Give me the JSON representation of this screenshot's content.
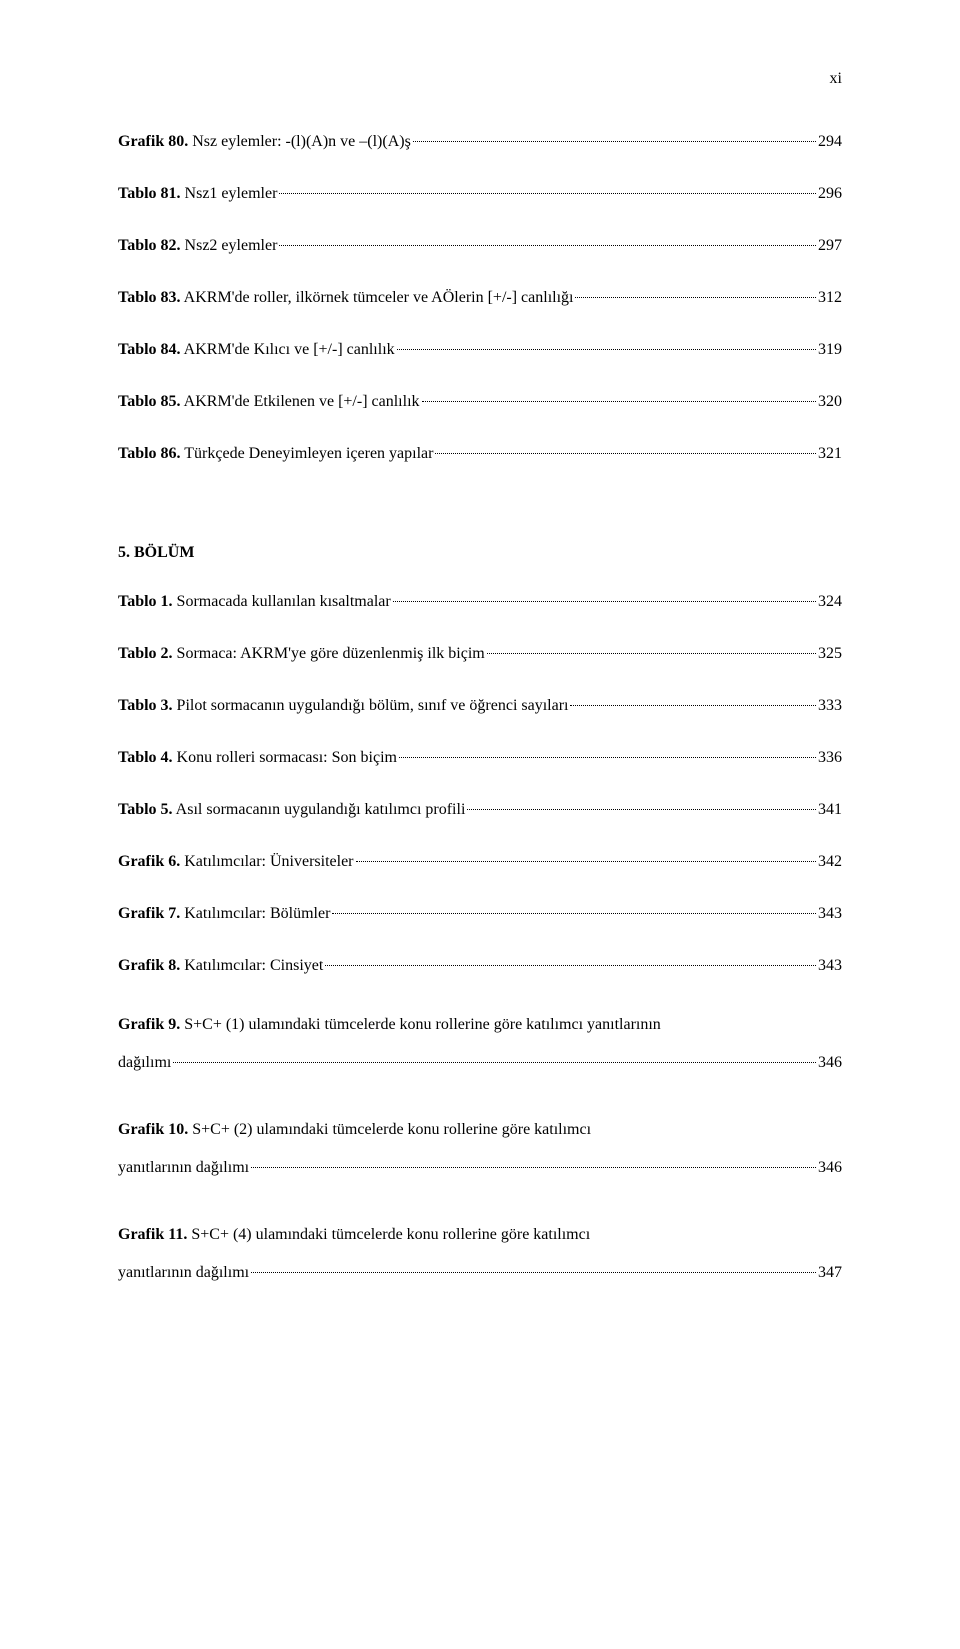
{
  "page_number": "xi",
  "entries_top": [
    {
      "label_bold": "Grafik 80.",
      "label_rest": " Nsz eylemler: -(l)(A)n ve –(l)(A)ş",
      "page": "294"
    },
    {
      "label_bold": "Tablo 81.",
      "label_rest": " Nsz1 eylemler",
      "page": "296"
    },
    {
      "label_bold": "Tablo 82.",
      "label_rest": " Nsz2 eylemler",
      "page": "297"
    },
    {
      "label_bold": "Tablo 83.",
      "label_rest": " AKRM'de roller, ilkörnek tümceler ve AÖlerin [+/-] canlılığı",
      "page": "312"
    },
    {
      "label_bold": "Tablo 84.",
      "label_rest": " AKRM'de Kılıcı ve [+/-] canlılık",
      "page": "319"
    },
    {
      "label_bold": "Tablo 85.",
      "label_rest": " AKRM'de Etkilenen ve [+/-] canlılık",
      "page": "320"
    },
    {
      "label_bold": "Tablo 86.",
      "label_rest": " Türkçede Deneyimleyen içeren yapılar",
      "page": "321"
    }
  ],
  "section_title": "5. BÖLÜM",
  "entries_bottom": [
    {
      "label_bold": "Tablo 1.",
      "label_rest": " Sormacada kullanılan kısaltmalar",
      "page": "324"
    },
    {
      "label_bold": "Tablo 2.",
      "label_rest": " Sormaca: AKRM'ye göre düzenlenmiş ilk biçim",
      "page": "325"
    },
    {
      "label_bold": "Tablo 3.",
      "label_rest": " Pilot sormacanın uygulandığı bölüm, sınıf ve öğrenci sayıları",
      "page": "333"
    },
    {
      "label_bold": "Tablo 4.",
      "label_rest": " Konu rolleri sormacası: Son biçim",
      "page": "336"
    },
    {
      "label_bold": "Tablo 5.",
      "label_rest": " Asıl sormacanın uygulandığı katılımcı profili",
      "page": "341"
    },
    {
      "label_bold": "Grafik 6.",
      "label_rest": " Katılımcılar: Üniversiteler",
      "page": "342"
    },
    {
      "label_bold": "Grafik 7.",
      "label_rest": " Katılımcılar: Bölümler",
      "page": "343"
    },
    {
      "label_bold": "Grafik 8.",
      "label_rest": " Katılımcılar: Cinsiyet",
      "page": "343"
    }
  ],
  "multiline": [
    {
      "bold": "Grafik 9.",
      "first": " S+C+ (1) ulamındaki tümcelerde konu rollerine göre katılımcı yanıtlarının",
      "last_label": "dağılımı",
      "page": "346"
    },
    {
      "bold": "Grafik 10.",
      "first": "  S+C+ (2) ulamındaki tümcelerde konu rollerine göre katılımcı",
      "last_label": "yanıtlarının dağılımı",
      "page": "346"
    },
    {
      "bold": "Grafik 11.",
      "first": " S+C+ (4) ulamındaki tümcelerde konu rollerine göre katılımcı",
      "last_label": "yanıtlarının dağılımı",
      "page": "347"
    }
  ]
}
